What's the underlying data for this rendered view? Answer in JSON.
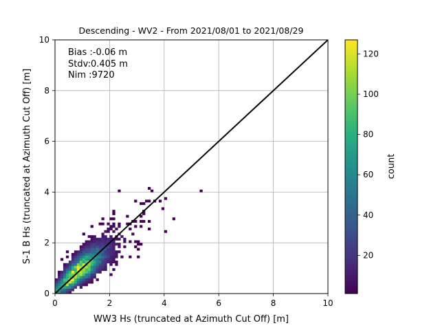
{
  "chart_data": {
    "type": "heatmap",
    "title": "Descending - WV2 - From 2021/08/01 to 2021/08/29",
    "xlabel": "WW3 Hs (truncated at Azimuth Cut Off) [m]",
    "ylabel": "S-1 B Hs (truncated at Azimuth Cut Off) [m]",
    "xlim": [
      0,
      10
    ],
    "ylim": [
      0,
      10
    ],
    "x_ticks": [
      0,
      2,
      4,
      6,
      8,
      10
    ],
    "y_ticks": [
      0,
      2,
      4,
      6,
      8,
      10
    ],
    "grid": true,
    "bin_size": 0.1,
    "reference_line": {
      "from": [
        0,
        0
      ],
      "to": [
        10,
        10
      ],
      "color": "#000000"
    },
    "stats": [
      "Bias :-0.06 m",
      "Stdv:0.405 m",
      "Nim :9720"
    ],
    "colorbar": {
      "label": "count",
      "range": [
        1,
        127
      ],
      "ticks": [
        20,
        40,
        60,
        80,
        100,
        120
      ],
      "colormap": "viridis"
    },
    "density_model": {
      "peak": [
        0.8,
        0.8
      ],
      "peak_count": 127,
      "spread_along": 0.55,
      "spread_across": 0.28,
      "tail_x": 5.4,
      "tail_y": 4.3
    }
  }
}
